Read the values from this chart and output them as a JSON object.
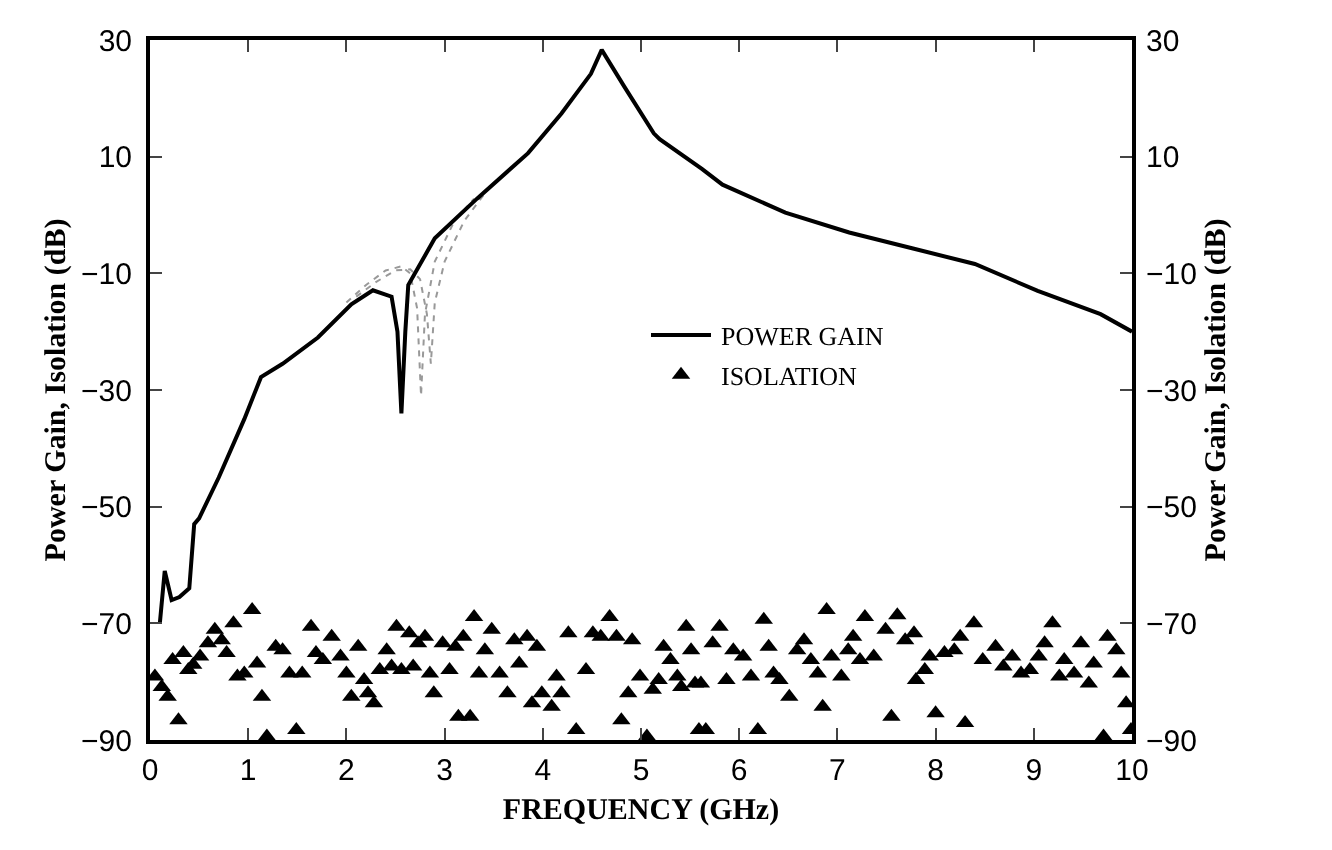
{
  "chart_data": {
    "type": "line",
    "xlabel": "FREQUENCY (GHz)",
    "ylabel": "Power Gain, Isolation (dB)",
    "y2label": "Power Gain, Isolation (dB)",
    "xlim": [
      0,
      10
    ],
    "xticks": [
      0,
      1,
      2,
      3,
      4,
      5,
      6,
      7,
      8,
      9,
      10
    ],
    "ylim": [
      -90,
      30
    ],
    "yticks": [
      -90,
      -70,
      -50,
      -30,
      -10,
      10,
      30
    ],
    "y2lim": [
      -90,
      30
    ],
    "y2ticks": [
      -90,
      -70,
      -50,
      -30,
      -10,
      10,
      30
    ],
    "legend": "center",
    "series": [
      {
        "color": "#999999",
        "line_style": "dotted",
        "x": [
          2.0,
          2.2,
          2.4,
          2.56,
          2.65,
          2.72,
          2.76,
          2.8,
          2.9,
          3.1,
          3.3
        ],
        "values": [
          -15,
          -12,
          -9.5,
          -8.8,
          -10,
          -16,
          -31,
          -17,
          -8,
          -1,
          2.8
        ]
      },
      {
        "color": "#999999",
        "line_style": "dotted",
        "x": [
          2.1,
          2.3,
          2.5,
          2.65,
          2.75,
          2.82,
          2.86,
          2.9,
          3.0,
          3.2,
          3.4
        ],
        "values": [
          -14,
          -11.5,
          -9.5,
          -9.3,
          -11,
          -17,
          -25.5,
          -15,
          -8,
          -1,
          3.5
        ]
      },
      {
        "name": "POWER GAIN",
        "color": "#000000",
        "line_style": "solid",
        "marker": "none",
        "x": [
          0.1,
          0.15,
          0.22,
          0.3,
          0.4,
          0.45,
          0.5,
          0.7,
          0.96,
          1.13,
          1.35,
          1.71,
          2.05,
          2.27,
          2.46,
          2.52,
          2.56,
          2.6,
          2.63,
          2.9,
          3.33,
          3.85,
          4.19,
          4.49,
          4.6,
          4.83,
          5.13,
          5.19,
          5.62,
          5.83,
          6.47,
          7.12,
          7.76,
          8.4,
          9.04,
          9.68,
          10
        ],
        "values": [
          -70,
          -61,
          -66,
          -65.5,
          -64,
          -53,
          -52,
          -45,
          -35,
          -27.8,
          -25.5,
          -21,
          -15.3,
          -12.9,
          -14,
          -20,
          -34,
          -20,
          -12,
          -4,
          2.8,
          10.6,
          17.4,
          24.2,
          28.3,
          22,
          14,
          13,
          7.9,
          5.2,
          0.4,
          -3,
          -5.7,
          -8.4,
          -13,
          -17,
          -20
        ]
      },
      {
        "type": "scatter",
        "name": "ISOLATION",
        "color": "#000000",
        "marker": "triangle",
        "x": [
          0.05,
          0.12,
          0.18,
          0.23,
          0.29,
          0.34,
          0.39,
          0.44,
          0.51,
          0.59,
          0.66,
          0.73,
          0.78,
          0.85,
          0.89,
          0.96,
          1.04,
          1.09,
          1.14,
          1.19,
          1.28,
          1.35,
          1.42,
          1.49,
          1.55,
          1.64,
          1.69,
          1.76,
          1.85,
          1.94,
          2.0,
          2.05,
          2.12,
          2.18,
          2.22,
          2.28,
          2.34,
          2.41,
          2.46,
          2.51,
          2.56,
          2.64,
          2.68,
          2.73,
          2.8,
          2.85,
          2.89,
          2.98,
          3.05,
          3.11,
          3.14,
          3.19,
          3.26,
          3.3,
          3.35,
          3.41,
          3.48,
          3.56,
          3.64,
          3.71,
          3.76,
          3.84,
          3.89,
          3.94,
          3.99,
          4.09,
          4.14,
          4.19,
          4.26,
          4.34,
          4.44,
          4.51,
          4.59,
          4.68,
          4.75,
          4.8,
          4.87,
          4.91,
          4.99,
          5.06,
          5.12,
          5.18,
          5.23,
          5.3,
          5.37,
          5.41,
          5.46,
          5.51,
          5.55,
          5.59,
          5.61,
          5.66,
          5.73,
          5.8,
          5.87,
          5.94,
          6.04,
          6.12,
          6.19,
          6.25,
          6.3,
          6.35,
          6.41,
          6.51,
          6.59,
          6.66,
          6.73,
          6.8,
          6.85,
          6.89,
          6.94,
          7.04,
          7.11,
          7.16,
          7.23,
          7.28,
          7.37,
          7.49,
          7.55,
          7.61,
          7.69,
          7.78,
          7.8,
          7.89,
          7.94,
          8.0,
          8.09,
          8.19,
          8.25,
          8.3,
          8.39,
          8.48,
          8.61,
          8.69,
          8.78,
          8.87,
          8.96,
          9.05,
          9.11,
          9.19,
          9.26,
          9.31,
          9.41,
          9.48,
          9.56,
          9.61,
          9.71,
          9.75,
          9.84,
          9.89,
          9.94,
          9.99
        ],
        "values": [
          -79.1,
          -80.9,
          -82.6,
          -76.3,
          -86.6,
          -75.1,
          -78,
          -77.1,
          -75.7,
          -73.4,
          -71.1,
          -72.9,
          -75.1,
          -70,
          -79.1,
          -78.6,
          -67.7,
          -76.9,
          -82.6,
          -89.4,
          -74,
          -74.6,
          -78.6,
          -88.3,
          -78.6,
          -70.6,
          -75.1,
          -76.3,
          -72.3,
          -75.7,
          -78.6,
          -82.6,
          -74,
          -79.7,
          -82,
          -83.7,
          -78,
          -74.6,
          -77.4,
          -70.6,
          -78,
          -71.7,
          -77.4,
          -73.4,
          -72.3,
          -78.6,
          -82,
          -73.4,
          -78,
          -74,
          -86,
          -72.3,
          -86,
          -68.9,
          -78.6,
          -74.6,
          -71.1,
          -78.6,
          -82,
          -72.9,
          -76.9,
          -72.3,
          -83.7,
          -74,
          -82,
          -84.3,
          -79.1,
          -82,
          -71.7,
          -88.3,
          -78,
          -71.7,
          -72.3,
          -68.9,
          -72.3,
          -86.6,
          -82,
          -72.9,
          -79.1,
          -89.4,
          -81.4,
          -79.7,
          -74,
          -76.3,
          -79.1,
          -80.9,
          -70.6,
          -74.6,
          -80.3,
          -88.3,
          -80.3,
          -88.3,
          -73.4,
          -70.6,
          -79.7,
          -74.6,
          -75.7,
          -79.1,
          -88.3,
          -69.4,
          -74,
          -78.6,
          -79.7,
          -82.6,
          -74.6,
          -72.9,
          -76.3,
          -78.6,
          -84.3,
          -67.7,
          -75.7,
          -79.1,
          -74.6,
          -72.3,
          -76.3,
          -68.9,
          -75.7,
          -71.1,
          -86,
          -68.6,
          -72.9,
          -71.7,
          -79.7,
          -78,
          -75.7,
          -85.4,
          -75.1,
          -74.6,
          -72.3,
          -87.1,
          -70,
          -76.3,
          -74,
          -77.4,
          -75.7,
          -78.6,
          -78,
          -75.7,
          -73.4,
          -70,
          -79.1,
          -76.3,
          -78.6,
          -73.4,
          -80.3,
          -76.9,
          -89.4,
          -72.3,
          -74.6,
          -78.6,
          -83.7,
          -88.3
        ]
      }
    ]
  }
}
